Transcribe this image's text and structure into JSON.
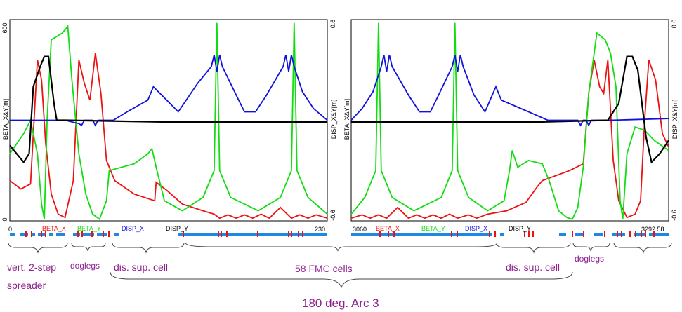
{
  "title": "180 deg. Arc 3",
  "colors": {
    "beta_x": "#ee1111",
    "beta_y": "#11dd11",
    "disp_x": "#1111dd",
    "disp_y": "#000000",
    "lattice": "#1e88e5",
    "annotation": "#8e1f8e",
    "frame": "#000000"
  },
  "chart_data": [
    {
      "type": "line",
      "panel": "left",
      "ylabel_left": "BETA_X&Y[m]",
      "ylabel_right": "DISP_X&Y[m]",
      "left_ticks": [
        "600",
        "0"
      ],
      "right_ticks": [
        "0.6",
        "-0.6"
      ],
      "ylim_beta": [
        0,
        600
      ],
      "ylim_disp": [
        -0.6,
        0.6
      ],
      "xlim": [
        0,
        230
      ],
      "x_start_label": "0",
      "x_end_label": "230",
      "legend": [
        "BETA_X",
        "BETA_Y",
        "DISP_X",
        "DISP_Y"
      ],
      "series": [
        {
          "name": "BETA_X",
          "points": [
            [
              0,
              120
            ],
            [
              8,
              95
            ],
            [
              15,
              110
            ],
            [
              20,
              480
            ],
            [
              23,
              420
            ],
            [
              26,
              230
            ],
            [
              30,
              80
            ],
            [
              35,
              20
            ],
            [
              40,
              10
            ],
            [
              46,
              120
            ],
            [
              50,
              480
            ],
            [
              54,
              410
            ],
            [
              58,
              360
            ],
            [
              62,
              500
            ],
            [
              66,
              380
            ],
            [
              70,
              180
            ],
            [
              76,
              120
            ],
            [
              90,
              80
            ],
            [
              105,
              60
            ],
            [
              106,
              115
            ],
            [
              114,
              90
            ],
            [
              125,
              50
            ],
            [
              140,
              30
            ],
            [
              148,
              20
            ],
            [
              152,
              8
            ],
            [
              158,
              18
            ],
            [
              164,
              8
            ],
            [
              170,
              18
            ],
            [
              176,
              8
            ],
            [
              182,
              20
            ],
            [
              188,
              8
            ],
            [
              196,
              40
            ],
            [
              204,
              8
            ],
            [
              210,
              18
            ],
            [
              216,
              8
            ],
            [
              222,
              18
            ],
            [
              230,
              8
            ]
          ]
        },
        {
          "name": "BETA_Y",
          "points": [
            [
              0,
              200
            ],
            [
              10,
              260
            ],
            [
              15,
              300
            ],
            [
              20,
              200
            ],
            [
              23,
              50
            ],
            [
              25,
              5
            ],
            [
              27,
              300
            ],
            [
              30,
              540
            ],
            [
              38,
              560
            ],
            [
              42,
              580
            ],
            [
              45,
              420
            ],
            [
              50,
              200
            ],
            [
              55,
              80
            ],
            [
              60,
              20
            ],
            [
              65,
              5
            ],
            [
              70,
              60
            ],
            [
              72,
              150
            ],
            [
              90,
              170
            ],
            [
              100,
              200
            ],
            [
              103,
              215
            ],
            [
              106,
              160
            ],
            [
              112,
              60
            ],
            [
              125,
              30
            ],
            [
              140,
              70
            ],
            [
              148,
              150
            ],
            [
              150,
              590
            ],
            [
              152,
              150
            ],
            [
              160,
              70
            ],
            [
              180,
              30
            ],
            [
              196,
              70
            ],
            [
              204,
              150
            ],
            [
              206,
              590
            ],
            [
              208,
              150
            ],
            [
              216,
              70
            ],
            [
              230,
              20
            ]
          ]
        },
        {
          "name": "DISP_X",
          "points": [
            [
              0,
              0
            ],
            [
              40,
              0
            ],
            [
              50,
              -0.02
            ],
            [
              52,
              -0.03
            ],
            [
              54,
              0
            ],
            [
              60,
              0
            ],
            [
              62,
              -0.03
            ],
            [
              64,
              0
            ],
            [
              75,
              0
            ],
            [
              85,
              0.05
            ],
            [
              100,
              0.12
            ],
            [
              104,
              0.2
            ],
            [
              110,
              0.15
            ],
            [
              122,
              0.05
            ],
            [
              136,
              0.22
            ],
            [
              146,
              0.32
            ],
            [
              148,
              0.39
            ],
            [
              150,
              0.29
            ],
            [
              152,
              0.39
            ],
            [
              154,
              0.32
            ],
            [
              164,
              0.15
            ],
            [
              170,
              0.05
            ],
            [
              178,
              0.05
            ],
            [
              186,
              0.15
            ],
            [
              198,
              0.32
            ],
            [
              200,
              0.39
            ],
            [
              202,
              0.29
            ],
            [
              204,
              0.39
            ],
            [
              206,
              0.32
            ],
            [
              212,
              0.17
            ],
            [
              220,
              0.07
            ],
            [
              230,
              0.0
            ]
          ]
        },
        {
          "name": "DISP_Y",
          "points": [
            [
              0,
              -0.15
            ],
            [
              5,
              -0.2
            ],
            [
              10,
              -0.25
            ],
            [
              14,
              -0.2
            ],
            [
              17,
              0.2
            ],
            [
              22,
              0.32
            ],
            [
              25,
              0.38
            ],
            [
              28,
              0.38
            ],
            [
              32,
              0.1
            ],
            [
              34,
              0
            ],
            [
              40,
              0
            ],
            [
              110,
              -0.01
            ],
            [
              230,
              -0.01
            ]
          ]
        }
      ]
    },
    {
      "type": "line",
      "panel": "right",
      "ylabel_left": "BETA_X&Y[m]",
      "ylabel_right": "DISP_X&Y[m]",
      "left_ticks": [
        "600",
        "0"
      ],
      "right_ticks": [
        "0.6",
        "-0.6"
      ],
      "ylim_beta": [
        0,
        600
      ],
      "ylim_disp": [
        -0.6,
        0.6
      ],
      "xlim": [
        3060,
        3292.58
      ],
      "x_start_label": "3060",
      "x_end_label": "3292.58",
      "legend": [
        "BETA_X",
        "BETA_Y",
        "DISP_X",
        "DISP_Y"
      ],
      "series": [
        {
          "name": "BETA_X",
          "points": [
            [
              3060,
              8
            ],
            [
              3068,
              18
            ],
            [
              3074,
              8
            ],
            [
              3080,
              18
            ],
            [
              3086,
              8
            ],
            [
              3094,
              40
            ],
            [
              3102,
              8
            ],
            [
              3108,
              18
            ],
            [
              3114,
              8
            ],
            [
              3120,
              18
            ],
            [
              3126,
              8
            ],
            [
              3132,
              20
            ],
            [
              3138,
              8
            ],
            [
              3146,
              18
            ],
            [
              3152,
              8
            ],
            [
              3160,
              20
            ],
            [
              3174,
              30
            ],
            [
              3188,
              55
            ],
            [
              3196,
              100
            ],
            [
              3200,
              120
            ],
            [
              3220,
              150
            ],
            [
              3230,
              170
            ],
            [
              3234,
              380
            ],
            [
              3238,
              480
            ],
            [
              3242,
              400
            ],
            [
              3245,
              380
            ],
            [
              3248,
              480
            ],
            [
              3252,
              180
            ],
            [
              3256,
              60
            ],
            [
              3262,
              10
            ],
            [
              3268,
              20
            ],
            [
              3272,
              60
            ],
            [
              3275,
              300
            ],
            [
              3278,
              480
            ],
            [
              3283,
              420
            ],
            [
              3288,
              260
            ],
            [
              3292.58,
              220
            ]
          ]
        },
        {
          "name": "BETA_Y",
          "points": [
            [
              3060,
              20
            ],
            [
              3070,
              70
            ],
            [
              3078,
              150
            ],
            [
              3080,
              590
            ],
            [
              3082,
              150
            ],
            [
              3090,
              70
            ],
            [
              3106,
              30
            ],
            [
              3126,
              70
            ],
            [
              3134,
              150
            ],
            [
              3136,
              590
            ],
            [
              3138,
              150
            ],
            [
              3146,
              70
            ],
            [
              3160,
              30
            ],
            [
              3172,
              60
            ],
            [
              3176,
              150
            ],
            [
              3178,
              210
            ],
            [
              3182,
              160
            ],
            [
              3190,
              180
            ],
            [
              3200,
              170
            ],
            [
              3205,
              120
            ],
            [
              3212,
              30
            ],
            [
              3218,
              10
            ],
            [
              3222,
              5
            ],
            [
              3226,
              40
            ],
            [
              3230,
              160
            ],
            [
              3234,
              380
            ],
            [
              3240,
              560
            ],
            [
              3246,
              540
            ],
            [
              3250,
              500
            ],
            [
              3254,
              400
            ],
            [
              3257,
              60
            ],
            [
              3259,
              5
            ],
            [
              3262,
              200
            ],
            [
              3268,
              280
            ],
            [
              3275,
              270
            ],
            [
              3282,
              240
            ],
            [
              3292.58,
              210
            ]
          ]
        },
        {
          "name": "DISP_X",
          "points": [
            [
              3060,
              0.0
            ],
            [
              3068,
              0.07
            ],
            [
              3076,
              0.17
            ],
            [
              3082,
              0.32
            ],
            [
              3084,
              0.39
            ],
            [
              3086,
              0.29
            ],
            [
              3088,
              0.39
            ],
            [
              3090,
              0.32
            ],
            [
              3102,
              0.15
            ],
            [
              3110,
              0.05
            ],
            [
              3118,
              0.05
            ],
            [
              3124,
              0.15
            ],
            [
              3134,
              0.32
            ],
            [
              3136,
              0.39
            ],
            [
              3138,
              0.29
            ],
            [
              3140,
              0.39
            ],
            [
              3142,
              0.32
            ],
            [
              3150,
              0.15
            ],
            [
              3158,
              0.05
            ],
            [
              3166,
              0.2
            ],
            [
              3170,
              0.12
            ],
            [
              3190,
              0.05
            ],
            [
              3204,
              0
            ],
            [
              3226,
              0
            ],
            [
              3228,
              -0.03
            ],
            [
              3230,
              0
            ],
            [
              3232,
              0
            ],
            [
              3234,
              -0.03
            ],
            [
              3236,
              0
            ],
            [
              3250,
              0
            ],
            [
              3292.58,
              0.01
            ]
          ]
        },
        {
          "name": "DISP_Y",
          "points": [
            [
              3060,
              -0.01
            ],
            [
              3200,
              -0.01
            ],
            [
              3248,
              0
            ],
            [
              3256,
              0.1
            ],
            [
              3262,
              0.38
            ],
            [
              3266,
              0.38
            ],
            [
              3270,
              0.3
            ],
            [
              3276,
              -0.1
            ],
            [
              3280,
              -0.25
            ],
            [
              3286,
              -0.2
            ],
            [
              3292.58,
              -0.12
            ]
          ]
        }
      ]
    }
  ],
  "annotations": {
    "vert_spreader": "vert. 2-step",
    "spreader": "spreader",
    "doglegs_left": "doglegs",
    "dis_sup_left": "dis. sup. cell",
    "fmc_cells": "58 FMC cells",
    "dis_sup_right": "dis. sup. cell",
    "doglegs_right": "doglegs"
  }
}
